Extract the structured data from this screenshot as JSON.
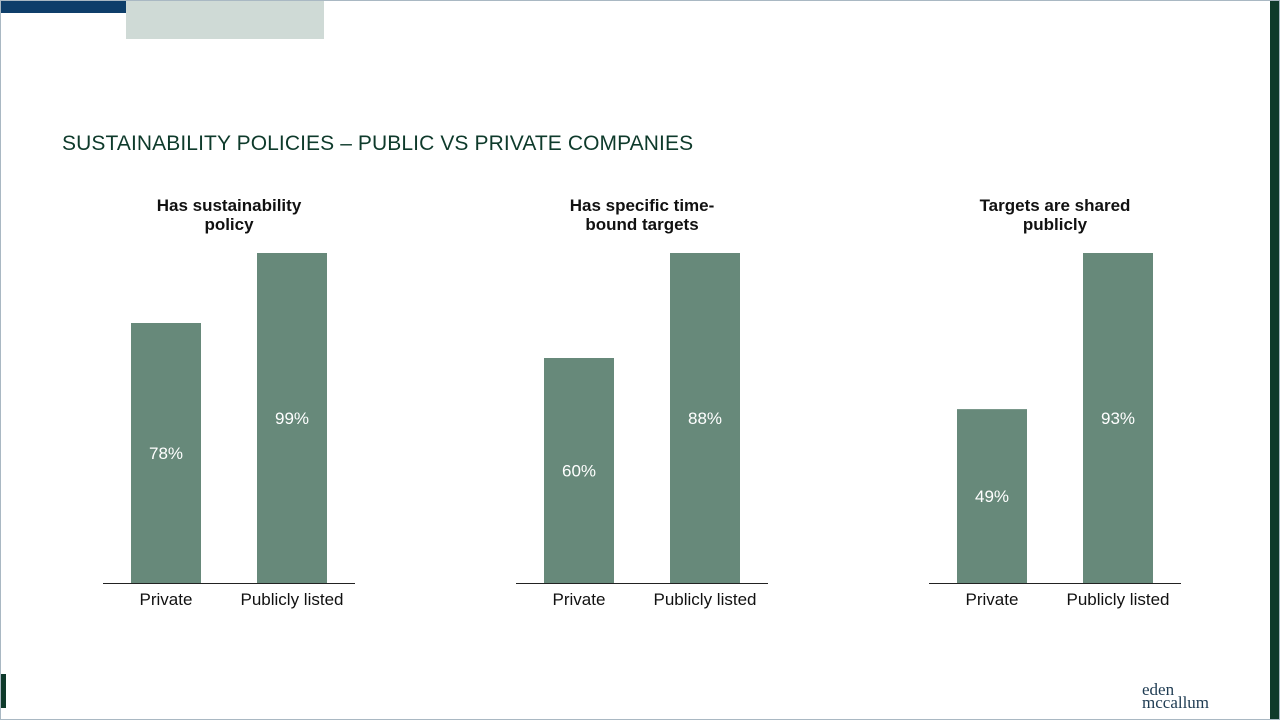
{
  "slide": {
    "title": "SUSTAINABILITY POLICIES – PUBLIC VS PRIVATE COMPANIES",
    "logo_line1": "eden",
    "logo_line2": "mccallum"
  },
  "colors": {
    "bar": "#67897a",
    "title": "#0e3a2b",
    "axis": "#222222",
    "accent_dark": "#0e3e6a",
    "accent_light": "#cfdad6"
  },
  "chart_data": [
    {
      "type": "bar",
      "title": "Has sustainability policy",
      "title_lines": [
        "Has sustainability",
        "policy"
      ],
      "categories": [
        "Private",
        "Publicly listed"
      ],
      "values": [
        78,
        99
      ],
      "labels": [
        "78%",
        "99%"
      ],
      "ylim": [
        0,
        99
      ],
      "grid": false
    },
    {
      "type": "bar",
      "title": "Has specific time-bound targets",
      "title_lines": [
        "Has specific time-",
        "bound targets"
      ],
      "categories": [
        "Private",
        "Publicly listed"
      ],
      "values": [
        60,
        88
      ],
      "labels": [
        "60%",
        "88%"
      ],
      "ylim": [
        0,
        88
      ],
      "grid": false
    },
    {
      "type": "bar",
      "title": "Targets are shared publicly",
      "title_lines": [
        "Targets are shared",
        "publicly"
      ],
      "categories": [
        "Private",
        "Publicly listed"
      ],
      "values": [
        49,
        93
      ],
      "labels": [
        "49%",
        "93%"
      ],
      "ylim": [
        0,
        93
      ],
      "grid": false
    }
  ]
}
